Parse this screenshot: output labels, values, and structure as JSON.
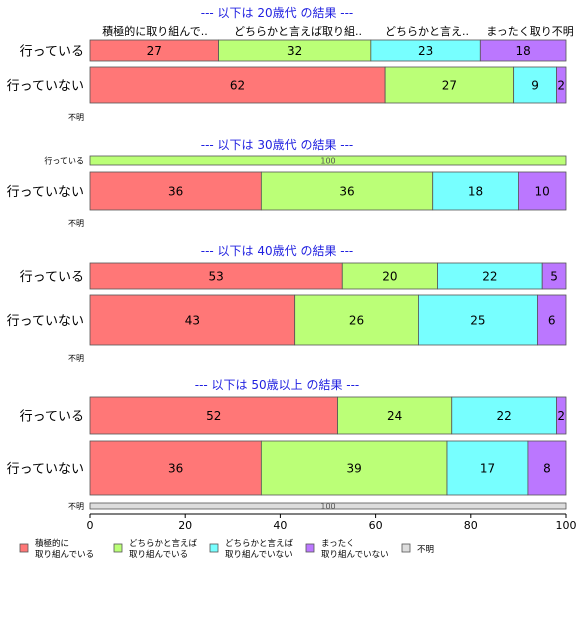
{
  "chart_data": {
    "type": "bar",
    "orientation": "horizontal",
    "stacked": true,
    "xlim": [
      0,
      100
    ],
    "x_ticks": [
      "0",
      "20",
      "40",
      "60",
      "80",
      "100"
    ],
    "series": [
      {
        "name": "積極的に取り組んでいる",
        "color": "#ff7777"
      },
      {
        "name": "どちらかと言えば取り組んでいる",
        "color": "#bbff77"
      },
      {
        "name": "どちらかと言えば取り組んでいない",
        "color": "#77ffff"
      },
      {
        "name": "まったく取り組んでいない",
        "color": "#bb77ff"
      },
      {
        "name": "不明",
        "color": "#dddddd"
      }
    ],
    "legend": {
      "placement": "bottom",
      "labels": [
        [
          "積極的に",
          "取り組んでいる"
        ],
        [
          "どちらかと言えば",
          "取り組んでいる"
        ],
        [
          "どちらかと言えば",
          "取り組んでいない"
        ],
        [
          "まったく",
          "取り組んでいない"
        ],
        [
          "不明"
        ]
      ]
    },
    "column_headers": [
      "積極的に取り組んで..",
      "どちらかと言えば取り組..",
      "どちらかと言え..",
      "まったく取り不明"
    ],
    "panels": [
      {
        "title": "--- 以下は 20歳代 の結果 ---",
        "rows": [
          {
            "label": "行っている",
            "values": [
              27,
              32,
              23,
              18,
              0
            ]
          },
          {
            "label": "行っていない",
            "values": [
              62,
              27,
              9,
              2,
              0
            ]
          },
          {
            "label": "不明",
            "values": [
              0,
              0,
              0,
              0,
              0
            ]
          }
        ]
      },
      {
        "title": "--- 以下は 30歳代 の結果 ---",
        "rows": [
          {
            "label": "行っている",
            "values": [
              0,
              100,
              0,
              0,
              0
            ]
          },
          {
            "label": "行っていない",
            "values": [
              36,
              36,
              18,
              10,
              0
            ]
          },
          {
            "label": "不明",
            "values": [
              0,
              0,
              0,
              0,
              0
            ]
          }
        ]
      },
      {
        "title": "--- 以下は 40歳代 の結果 ---",
        "rows": [
          {
            "label": "行っている",
            "values": [
              53,
              20,
              22,
              5,
              0
            ]
          },
          {
            "label": "行っていない",
            "values": [
              43,
              26,
              25,
              6,
              0
            ]
          },
          {
            "label": "不明",
            "values": [
              0,
              0,
              0,
              0,
              0
            ]
          }
        ]
      },
      {
        "title": "--- 以下は 50歳以上 の結果 ---",
        "rows": [
          {
            "label": "行っている",
            "values": [
              52,
              24,
              22,
              2,
              0
            ]
          },
          {
            "label": "行っていない",
            "values": [
              36,
              39,
              17,
              8,
              0
            ]
          },
          {
            "label": "不明",
            "values": [
              0,
              0,
              0,
              0,
              100
            ]
          }
        ]
      }
    ]
  }
}
